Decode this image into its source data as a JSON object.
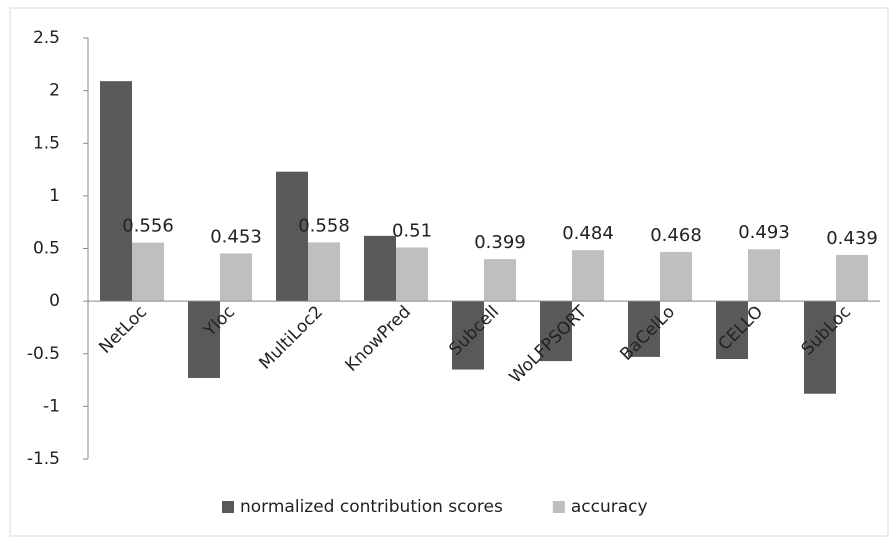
{
  "chart_data": {
    "type": "bar",
    "categories": [
      "NetLoc",
      "Yloc",
      "MultiLoc2",
      "KnowPred",
      "Subcell",
      "WoLFPSORT",
      "BaCelLo",
      "CELLO",
      "SubLoc"
    ],
    "series": [
      {
        "name": "normalized contribution scores",
        "color": "#595959",
        "data_labels": false,
        "values": [
          2.09,
          -0.73,
          1.23,
          0.62,
          -0.65,
          -0.57,
          -0.53,
          -0.55,
          -0.88
        ]
      },
      {
        "name": "accuracy",
        "color": "#bfbfbf",
        "data_labels": true,
        "values": [
          0.556,
          0.453,
          0.558,
          0.51,
          0.399,
          0.484,
          0.468,
          0.493,
          0.439
        ]
      }
    ],
    "ylim": [
      -1.5,
      2.5
    ],
    "yticks": [
      -1.5,
      -1,
      -0.5,
      0,
      0.5,
      1,
      1.5,
      2,
      2.5
    ],
    "grid": false,
    "legend": "bottom"
  }
}
